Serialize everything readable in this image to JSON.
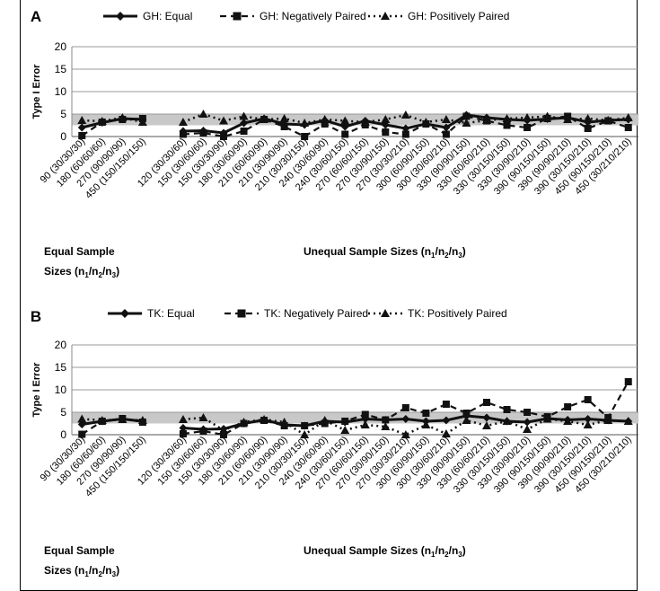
{
  "chart_data": [
    {
      "type": "line",
      "panel_label": "A",
      "ylabel": "Type I Error",
      "ylim": [
        0,
        20
      ],
      "yticks": [
        "0",
        "5",
        "10",
        "15",
        "20"
      ],
      "shaded_band": [
        2.5,
        5
      ],
      "group_labels": {
        "equal": [
          "Equal Sample",
          "Sizes (n",
          "1",
          "/n",
          "2",
          "/n",
          "3",
          ")"
        ],
        "unequal": [
          "Unequal Sample Sizes (n",
          "1",
          "/n",
          "2",
          "/n",
          "3",
          ")"
        ]
      },
      "categories": [
        "90 (30/30/30)",
        "180 (60/60/60)",
        "270 (90/90/90)",
        "450 (150/150/150)",
        "",
        "120 (30/30/60)",
        "150 (30/60/60)",
        "150 (30/30/90)",
        "180 (30/60/90)",
        "210 (60/60/90)",
        "210 (30/90/90)",
        "210 (30/30/150)",
        "240 (30/60/90)",
        "240 (30/60/150)",
        "270 (60/60/150)",
        "270 (30/90/150)",
        "270 (30/30/210)",
        "300 (60/90/150)",
        "300 (30/60/210)",
        "330 (90/90/150)",
        "330 (60/60/210)",
        "330 (30/150/150)",
        "330 (30/90/210)",
        "390 (90/150/150)",
        "390 (90/90/210)",
        "390 (30/150/210)",
        "450 (90/150/210)",
        "450 (30/210/210)"
      ],
      "series": [
        {
          "name": "GH: Equal",
          "style": "solid",
          "marker": "diamond",
          "values": [
            2.0,
            3.1,
            4.0,
            3.8,
            null,
            1.2,
            1.3,
            0.8,
            3.0,
            4.0,
            2.8,
            2.6,
            3.6,
            2.2,
            3.5,
            2.6,
            1.8,
            2.8,
            2.0,
            4.8,
            4.2,
            3.8,
            3.6,
            3.9,
            4.2,
            3.2,
            3.6,
            3.8
          ]
        },
        {
          "name": "GH: Negatively Paired",
          "style": "dashed",
          "marker": "square",
          "values": [
            0.2,
            3.2,
            3.8,
            4.0,
            null,
            0.5,
            0.8,
            0.0,
            1.2,
            3.8,
            2.2,
            0.0,
            2.8,
            0.5,
            2.6,
            1.0,
            0.5,
            2.8,
            0.5,
            4.5,
            3.5,
            2.5,
            2.0,
            4.0,
            4.5,
            1.8,
            3.5,
            2.0
          ]
        },
        {
          "name": "GH: Positively Paired",
          "style": "dotted",
          "marker": "triangle",
          "values": [
            3.6,
            3.4,
            4.2,
            3.2,
            null,
            3.2,
            5.0,
            3.5,
            4.5,
            3.8,
            4.0,
            3.0,
            3.8,
            3.5,
            3.2,
            3.8,
            4.8,
            3.2,
            3.8,
            3.0,
            3.6,
            4.0,
            4.2,
            4.5,
            3.8,
            4.0,
            3.6,
            4.2
          ]
        }
      ]
    },
    {
      "type": "line",
      "panel_label": "B",
      "ylabel": "Type I Error",
      "ylim": [
        0,
        20
      ],
      "yticks": [
        "0",
        "5",
        "10",
        "15",
        "20"
      ],
      "shaded_band": [
        2.5,
        5
      ],
      "group_labels": {
        "equal": [
          "Equal Sample",
          "Sizes (n",
          "1",
          "/n",
          "2",
          "/n",
          "3",
          ")"
        ],
        "unequal": [
          "Unequal Sample Sizes (n",
          "1",
          "/n",
          "2",
          "/n",
          "3",
          ")"
        ]
      },
      "categories": [
        "90 (30/30/30)",
        "180 (60/60/60)",
        "270 (90/90/90)",
        "450 (150/150/150)",
        "",
        "120 (30/30/60)",
        "150 (30/60/60)",
        "150 (30/30/90)",
        "180 (30/60/90)",
        "210 (60/60/90)",
        "210 (30/90/90)",
        "210 (30/30/150)",
        "240 (30/60/90)",
        "240 (30/60/150)",
        "270 (60/60/150)",
        "270 (30/90/150)",
        "270 (30/30/210)",
        "300 (60/90/150)",
        "300 (30/60/210)",
        "330 (90/90/150)",
        "330 (60/60/210)",
        "330 (30/150/150)",
        "330 (30/90/210)",
        "390 (90/150/150)",
        "390 (90/90/210)",
        "390 (30/150/210)",
        "450 (90/150/210)",
        "450 (30/210/210)"
      ],
      "series": [
        {
          "name": "TK: Equal",
          "style": "solid",
          "marker": "diamond",
          "values": [
            2.3,
            3.0,
            3.5,
            3.0,
            null,
            1.5,
            1.2,
            1.3,
            2.5,
            3.3,
            2.2,
            2.0,
            3.0,
            2.8,
            3.5,
            3.3,
            3.5,
            3.0,
            3.2,
            4.2,
            3.8,
            3.0,
            2.8,
            3.6,
            3.3,
            3.5,
            3.2,
            3.0
          ]
        },
        {
          "name": "TK: Negatively Paired",
          "style": "dashed",
          "marker": "square",
          "values": [
            0.1,
            3.0,
            3.6,
            2.8,
            null,
            0.2,
            0.8,
            0.0,
            2.5,
            3.2,
            2.0,
            2.0,
            2.5,
            3.0,
            4.5,
            3.3,
            6.0,
            4.8,
            6.8,
            4.8,
            7.2,
            5.6,
            5.0,
            4.0,
            6.2,
            7.8,
            3.8,
            11.8
          ]
        },
        {
          "name": "TK: Positively Paired",
          "style": "dotted",
          "marker": "triangle",
          "values": [
            3.5,
            3.2,
            3.4,
            3.2,
            null,
            3.4,
            3.8,
            1.0,
            2.8,
            3.4,
            2.8,
            0.0,
            3.2,
            1.0,
            2.2,
            1.8,
            0.0,
            2.2,
            0.2,
            3.2,
            2.0,
            3.0,
            1.2,
            3.5,
            3.0,
            2.2,
            3.2,
            3.0
          ]
        }
      ]
    }
  ]
}
